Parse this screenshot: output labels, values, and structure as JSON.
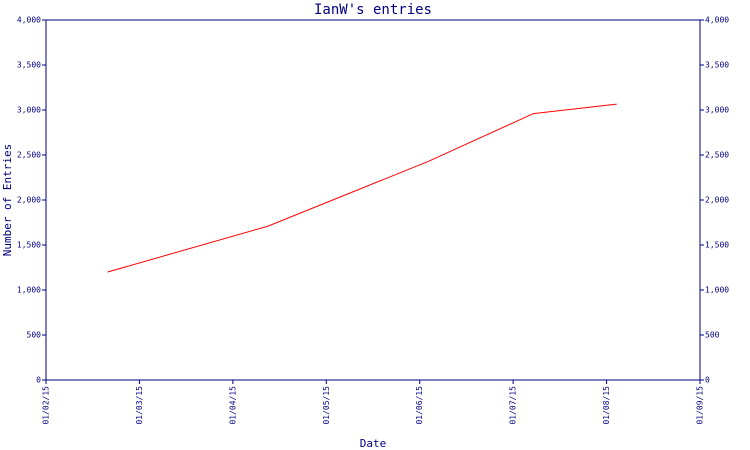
{
  "chart_data": {
    "type": "line",
    "title": "IanW's entries",
    "xlabel": "Date",
    "ylabel": "Number of Entries",
    "x_ticks": [
      "01/02/15",
      "01/03/15",
      "01/04/15",
      "01/05/15",
      "01/06/15",
      "01/07/15",
      "01/08/15",
      "01/09/15"
    ],
    "y_ticks": [
      "0",
      "500",
      "1,000",
      "1,500",
      "2,000",
      "2,500",
      "3,000",
      "3,500",
      "4,000"
    ],
    "ylim": [
      0,
      4000
    ],
    "xlim": [
      "2015-02-01",
      "2015-09-01"
    ],
    "grid": false,
    "series": [
      {
        "points": [
          {
            "x": "2015-02-21",
            "y": 1200
          },
          {
            "x": "2015-04-14",
            "y": 1710
          },
          {
            "x": "2015-06-05",
            "y": 2430
          },
          {
            "x": "2015-07-09",
            "y": 2960
          },
          {
            "x": "2015-08-05",
            "y": 3065
          }
        ]
      }
    ],
    "colors": {
      "axis": "#000080",
      "text": "#000080",
      "line": "#ff0000"
    }
  }
}
